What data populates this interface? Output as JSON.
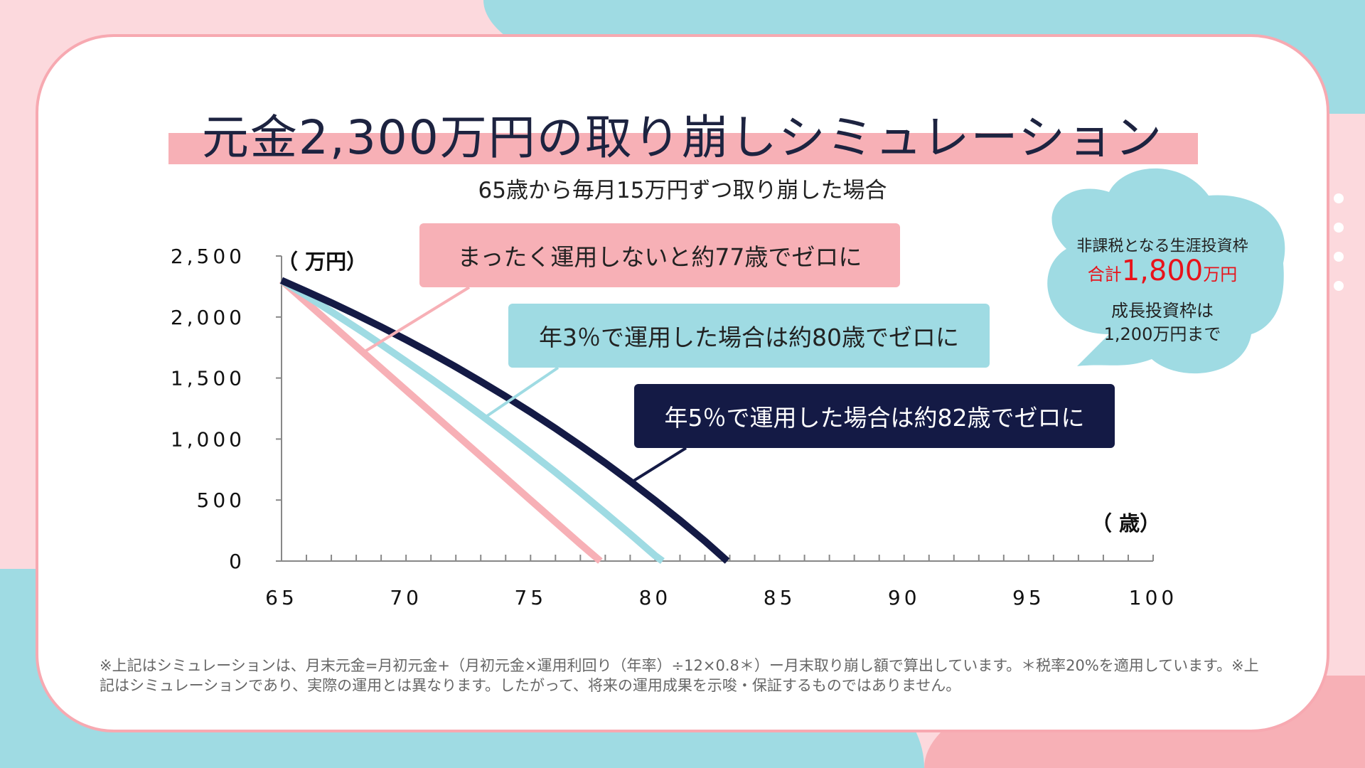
{
  "title": "元金2,300万円の取り崩しシミュレーション",
  "subtitle": "65歳から毎月15万円ずつ取り崩した場合",
  "callouts": [
    "まったく運用しないと約77歳でゼロに",
    "年3％で運用した場合は約80歳でゼロに",
    "年5％で運用した場合は約82歳でゼロに"
  ],
  "cloud": {
    "line1": "非課税となる生涯投資枠",
    "line2_prefix": "合計",
    "line2_amount": "1,800",
    "line2_suffix": "万円",
    "line3": "成長投資枠は",
    "line4": "1,200万円まで"
  },
  "footnote": "※上記はシミュレーションは、月末元金=月初元金+（月初元金×運用利回り（年率）÷12×0.8＊）ー月末取り崩し額で算出しています。＊税率20%を適用しています。※上記はシミュレーションであり、実際の運用とは異なります。したがって、将来の運用成果を示唆・保証するものではありません。",
  "colors": {
    "none": "#f7b0b6",
    "r3": "#9fdbe3",
    "r5": "#141a45",
    "accent": "#e8131b"
  },
  "chart_data": {
    "type": "line",
    "title": "元金2,300万円の取り崩しシミュレーション",
    "xlabel": "（ 歳）",
    "ylabel": "（ 万円）",
    "xlim": [
      65,
      100
    ],
    "ylim": [
      0,
      2500
    ],
    "xticks": [
      "65",
      "70",
      "75",
      "80",
      "85",
      "90",
      "95",
      "100"
    ],
    "yticks": [
      "0",
      "500",
      "1,000",
      "1,500",
      "2,000",
      "2,500"
    ],
    "series": [
      {
        "name": "運用なし",
        "color": "#f7b0b6",
        "x": [
          65,
          66,
          67,
          68,
          69,
          70,
          71,
          72,
          73,
          74,
          75,
          76,
          77,
          77.8
        ],
        "y": [
          2300,
          2120,
          1940,
          1760,
          1580,
          1400,
          1220,
          1040,
          860,
          680,
          500,
          320,
          140,
          0
        ]
      },
      {
        "name": "年3%",
        "color": "#9fdbe3",
        "x": [
          65,
          66,
          67,
          68,
          69,
          70,
          71,
          72,
          73,
          74,
          75,
          76,
          77,
          78,
          79,
          80,
          80.3
        ],
        "y": [
          2300,
          2174,
          2044,
          1912,
          1776,
          1636,
          1494,
          1348,
          1198,
          1045,
          888,
          728,
          563,
          394,
          222,
          45,
          0
        ]
      },
      {
        "name": "年5%",
        "color": "#141a45",
        "x": [
          65,
          66,
          67,
          68,
          69,
          70,
          71,
          72,
          73,
          74,
          75,
          76,
          77,
          78,
          79,
          80,
          81,
          82,
          82.9
        ],
        "y": [
          2300,
          2210,
          2117,
          2020,
          1919,
          1814,
          1705,
          1591,
          1472,
          1349,
          1221,
          1087,
          948,
          804,
          653,
          497,
          334,
          164,
          0
        ]
      }
    ]
  }
}
